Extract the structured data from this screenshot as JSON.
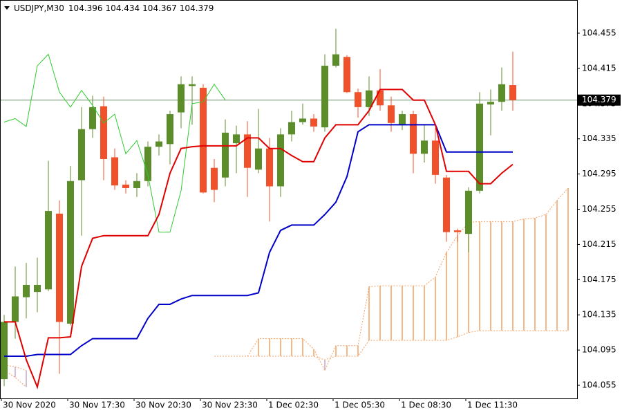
{
  "chart_data": {
    "type": "candlestick",
    "header": {
      "symbol": "USDJPY,M30",
      "open": 104.396,
      "high": 104.434,
      "low": 104.367,
      "close": 104.379
    },
    "categories": [
      "30 Nov 2020",
      null,
      null,
      null,
      null,
      null,
      "30 Nov 17:30",
      null,
      null,
      null,
      null,
      null,
      "30 Nov 20:30",
      null,
      null,
      null,
      null,
      null,
      "30 Nov 23:30",
      null,
      null,
      null,
      null,
      null,
      "1 Dec 02:30",
      null,
      null,
      null,
      null,
      null,
      "1 Dec 05:30",
      null,
      null,
      null,
      null,
      null,
      "1 Dec 08:30",
      null,
      null,
      null,
      null,
      null,
      "1 Dec 11:30",
      null,
      null,
      null,
      null,
      null,
      null,
      null,
      null,
      null
    ],
    "open": [
      104.062,
      104.127,
      104.155,
      104.161,
      104.164,
      104.25,
      104.125,
      104.288,
      104.346,
      104.372,
      104.314,
      104.283,
      104.279,
      104.287,
      104.326,
      104.329,
      104.365,
      104.395,
      104.393,
      104.302,
      104.291,
      104.33,
      104.34,
      104.3,
      104.324,
      104.281,
      104.34,
      104.354,
      104.358,
      104.348,
      104.418,
      104.428,
      104.388,
      104.371,
      104.39,
      104.373,
      104.351,
      104.363,
      104.318,
      104.333,
      104.291,
      104.231,
      104.227,
      104.276,
      104.374,
      104.377,
      104.396,
      null,
      null,
      null,
      null,
      null
    ],
    "high": [
      104.135,
      104.19,
      104.194,
      104.2,
      104.31,
      104.265,
      104.304,
      104.371,
      104.384,
      104.383,
      104.324,
      104.288,
      104.296,
      104.332,
      104.34,
      104.367,
      104.406,
      104.406,
      104.397,
      104.312,
      104.357,
      104.35,
      104.355,
      104.369,
      104.336,
      104.347,
      104.367,
      104.375,
      104.363,
      104.431,
      104.46,
      104.43,
      104.392,
      104.406,
      104.414,
      104.383,
      104.367,
      104.367,
      104.351,
      104.347,
      104.294,
      104.233,
      104.28,
      104.388,
      104.391,
      104.416,
      104.434,
      null,
      null,
      null,
      null,
      null
    ],
    "low": [
      104.054,
      104.108,
      104.131,
      104.138,
      104.162,
      104.068,
      104.123,
      104.225,
      104.336,
      104.288,
      104.277,
      104.273,
      104.269,
      104.281,
      104.316,
      104.306,
      104.347,
      104.351,
      104.273,
      104.263,
      104.281,
      104.296,
      104.269,
      104.296,
      104.241,
      104.269,
      104.332,
      104.351,
      104.343,
      104.343,
      104.416,
      104.387,
      104.359,
      104.361,
      104.367,
      104.343,
      104.345,
      104.296,
      104.308,
      104.284,
      104.218,
      104.218,
      104.206,
      104.273,
      104.339,
      104.367,
      104.367,
      null,
      null,
      null,
      null,
      null
    ],
    "close": [
      104.127,
      104.156,
      104.169,
      104.169,
      104.253,
      104.127,
      104.287,
      104.346,
      104.371,
      104.312,
      104.282,
      104.279,
      104.287,
      104.326,
      104.332,
      104.363,
      104.397,
      104.397,
      104.274,
      104.277,
      104.342,
      104.34,
      104.302,
      104.324,
      104.281,
      104.34,
      104.354,
      104.358,
      104.349,
      104.418,
      104.431,
      104.388,
      104.371,
      104.39,
      104.373,
      104.353,
      104.363,
      104.318,
      104.333,
      104.294,
      104.229,
      104.229,
      104.276,
      104.375,
      104.377,
      104.397,
      104.379,
      null,
      null,
      null,
      null,
      null
    ],
    "up_color": "#5b8e2a",
    "down_color": "#f0502a",
    "lines": [
      {
        "color": "#2ecc2e",
        "values": [
          104.354,
          104.358,
          104.349,
          104.418,
          104.431,
          104.388,
          104.371,
          104.39,
          104.373,
          104.353,
          104.363,
          104.318,
          104.333,
          104.294,
          104.229,
          104.229,
          104.276,
          104.375,
          104.377,
          104.397,
          104.379,
          null,
          null,
          null,
          null,
          null,
          null,
          null,
          null,
          null,
          null,
          null,
          null,
          null,
          null,
          null,
          null,
          null,
          null,
          null,
          null,
          null,
          null,
          null,
          null,
          null,
          null,
          null,
          null,
          null,
          null,
          null
        ]
      },
      {
        "color": "#0000c8",
        "values": [
          104.088,
          104.088,
          104.088,
          104.09,
          104.09,
          104.09,
          104.09,
          104.1,
          104.108,
          104.108,
          104.108,
          104.108,
          104.108,
          104.131,
          104.147,
          104.147,
          104.153,
          104.157,
          104.157,
          104.157,
          104.157,
          104.157,
          104.157,
          104.16,
          104.206,
          104.231,
          104.237,
          104.237,
          104.237,
          104.249,
          104.263,
          104.292,
          104.343,
          104.351,
          104.351,
          104.351,
          104.351,
          104.351,
          104.351,
          104.351,
          104.32,
          104.32,
          104.32,
          104.32,
          104.32,
          104.32,
          104.32,
          null,
          null,
          null,
          null,
          null
        ]
      },
      {
        "color": "#e00000",
        "values": [
          104.127,
          104.127,
          104.084,
          104.053,
          104.109,
          104.109,
          104.11,
          104.19,
          104.222,
          104.225,
          104.225,
          104.225,
          104.225,
          104.225,
          104.249,
          104.296,
          104.324,
          104.326,
          104.327,
          104.327,
          104.327,
          104.327,
          104.336,
          104.336,
          104.324,
          104.324,
          104.316,
          104.309,
          104.309,
          104.336,
          104.351,
          104.351,
          104.351,
          104.367,
          104.391,
          104.391,
          104.391,
          104.379,
          104.379,
          104.351,
          104.298,
          104.298,
          104.298,
          104.284,
          104.284,
          104.296,
          104.306,
          null,
          null,
          null,
          null,
          null
        ]
      }
    ],
    "cloud": {
      "up_color": "#f4a060",
      "down_color": "#c0a8c8",
      "span_a": [
        104.072,
        104.064,
        104.053,
        null,
        null,
        null,
        null,
        null,
        null,
        null,
        null,
        null,
        null,
        null,
        null,
        null,
        null,
        null,
        null,
        104.088,
        104.088,
        104.088,
        104.088,
        104.108,
        104.108,
        104.108,
        104.108,
        104.108,
        104.096,
        104.072,
        104.1,
        104.1,
        104.1,
        104.167,
        104.168,
        104.168,
        104.168,
        104.168,
        104.168,
        104.178,
        104.206,
        104.225,
        104.24,
        104.241,
        104.241,
        104.241,
        104.241,
        104.244,
        104.245,
        104.249,
        104.265,
        104.279
      ],
      "span_b": [
        104.078,
        104.076,
        104.072,
        null,
        null,
        null,
        null,
        null,
        null,
        null,
        null,
        null,
        null,
        null,
        null,
        null,
        null,
        null,
        null,
        104.088,
        104.088,
        104.088,
        104.088,
        104.088,
        104.088,
        104.088,
        104.088,
        104.088,
        104.088,
        104.084,
        104.088,
        104.088,
        104.088,
        104.106,
        104.106,
        104.106,
        104.106,
        104.106,
        104.106,
        104.106,
        104.106,
        104.11,
        104.115,
        104.117,
        104.117,
        104.117,
        104.117,
        104.117,
        104.117,
        104.117,
        104.117,
        104.117
      ]
    },
    "current_price": 104.379,
    "current_price_color": "#6f8f6f",
    "ylim": [
      104.0401,
      104.4927
    ],
    "yticks": [
      104.455,
      104.415,
      104.375,
      104.335,
      104.295,
      104.255,
      104.215,
      104.175,
      104.135,
      104.095,
      104.055
    ]
  }
}
